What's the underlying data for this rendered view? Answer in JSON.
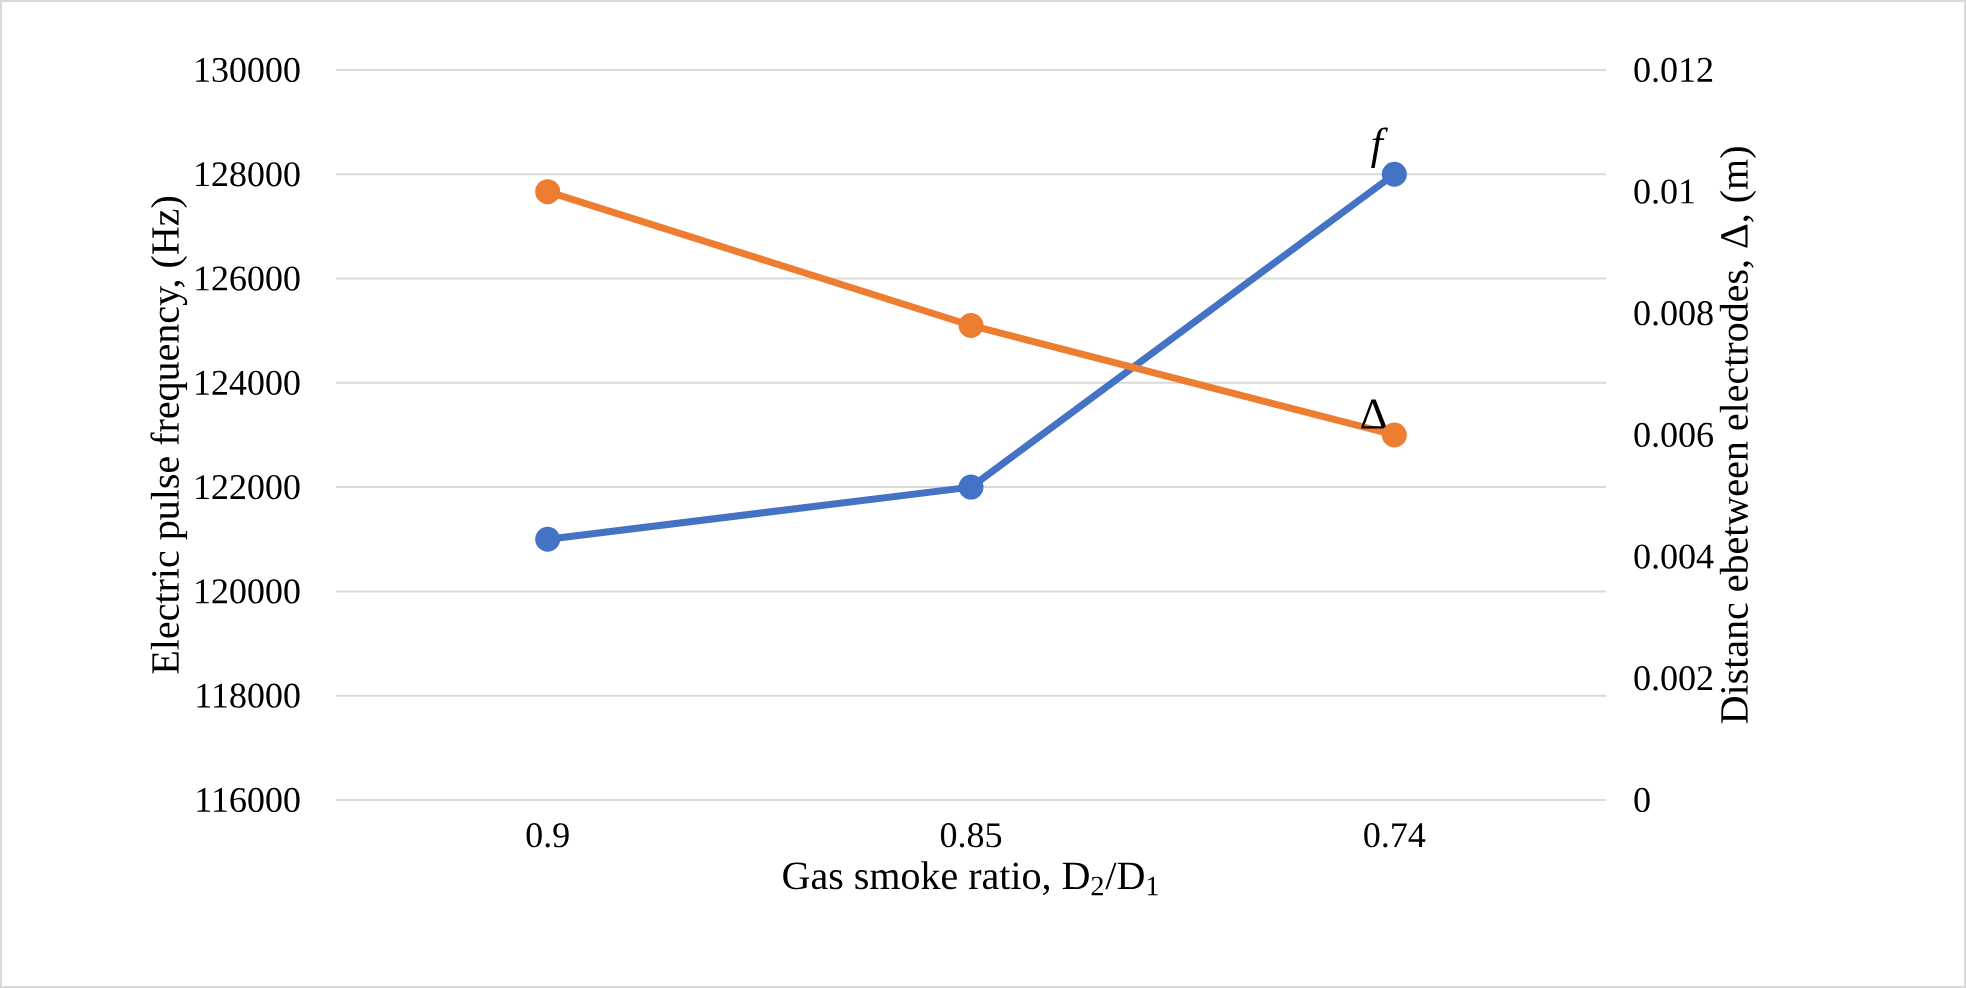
{
  "chart_data": {
    "type": "line",
    "xlabel": "Gas smoke ratio, D$_{2}$/D$_{1}$",
    "ylabel": "Electric pulse frequency, (Hz)",
    "y2label": "Distanc ebetween electrodes, Δ, (m)",
    "categories": [
      "0.9",
      "0.85",
      "0.74"
    ],
    "series": [
      {
        "name": "*f*",
        "color": "#4472c4",
        "values": [
          121000,
          122000,
          128000
        ]
      },
      {
        "name": "Δ",
        "color": "#ed7d31",
        "values": [
          0.01,
          0.0078,
          0.006
        ],
        "axis": "y2"
      }
    ],
    "ylim": [
      116000,
      130000
    ],
    "yticks": [
      116000,
      118000,
      120000,
      122000,
      124000,
      126000,
      128000,
      130000
    ],
    "y2lim": [
      0,
      0.012
    ],
    "y2ticks": [
      0,
      0.002,
      0.004,
      0.006,
      0.008,
      0.01,
      0.012
    ],
    "grid": "y",
    "marker": "circle",
    "line_style": "solid"
  }
}
